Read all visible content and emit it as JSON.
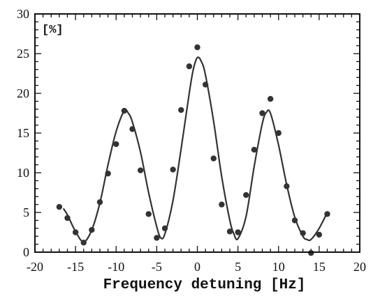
{
  "chart_data": {
    "type": "scatter",
    "title": "",
    "xlabel": "Frequency detuning [Hz]",
    "ylabel": "[%]",
    "xlim": [
      -20,
      20
    ],
    "ylim": [
      0,
      30
    ],
    "xticks": [
      -20,
      -15,
      -10,
      -5,
      0,
      5,
      10,
      15,
      20
    ],
    "yticks": [
      0,
      5,
      10,
      15,
      20,
      25,
      30
    ],
    "grid": false,
    "legend": "none",
    "series": [
      {
        "kind": "points",
        "x": [
          -17,
          -16,
          -15,
          -14,
          -13,
          -12,
          -11,
          -10,
          -9,
          -8,
          -7,
          -6,
          -5,
          -4,
          -3,
          -2,
          -1,
          0,
          1,
          2,
          3,
          4,
          5,
          6,
          7,
          8,
          9,
          10,
          11,
          12,
          13,
          14,
          15,
          16
        ],
        "y": [
          5.7,
          4.3,
          2.5,
          1.2,
          2.8,
          6.3,
          9.9,
          13.6,
          17.8,
          15.5,
          10.3,
          4.8,
          1.8,
          3.0,
          10.4,
          17.9,
          23.4,
          25.8,
          21.1,
          11.8,
          6.0,
          2.6,
          2.5,
          7.2,
          12.9,
          17.5,
          19.3,
          15.0,
          8.3,
          4.0,
          2.4,
          -0.1,
          2.2,
          4.8
        ]
      },
      {
        "kind": "fit-curve",
        "x": [
          -16.5,
          -16,
          -15,
          -14,
          -13,
          -12,
          -11,
          -10,
          -9,
          -8.5,
          -8,
          -7,
          -6,
          -5,
          -4.5,
          -4,
          -3,
          -2,
          -1,
          -0.5,
          0,
          0.5,
          1,
          2,
          3,
          4,
          4.5,
          5,
          6,
          7,
          8,
          8.5,
          9,
          10,
          11,
          12,
          13,
          13.5,
          14,
          15,
          16
        ],
        "y": [
          5.5,
          4.7,
          2.6,
          1.3,
          2.8,
          6.2,
          11.0,
          15.2,
          17.8,
          17.5,
          16.4,
          12.6,
          7.5,
          3.2,
          1.8,
          2.3,
          6.5,
          13.0,
          20.0,
          23.0,
          24.5,
          24.0,
          22.3,
          16.5,
          9.5,
          4.0,
          2.3,
          1.7,
          4.5,
          10.8,
          16.2,
          17.6,
          17.5,
          13.5,
          8.5,
          4.4,
          2.0,
          1.6,
          1.6,
          3.0,
          5.0
        ]
      }
    ]
  }
}
